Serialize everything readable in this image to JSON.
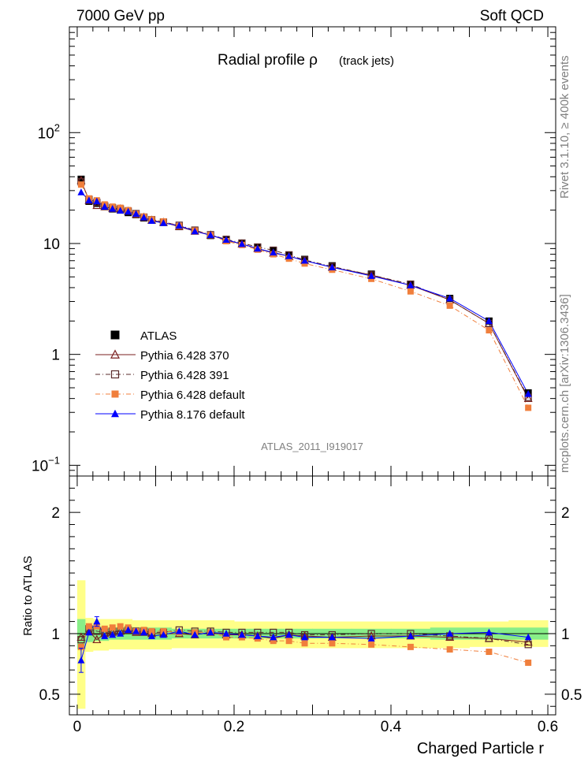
{
  "header": {
    "left": "7000 GeV pp",
    "right": "Soft QCD"
  },
  "side_labels": {
    "rivet": "Rivet 3.1.10, ≥ 400k events",
    "source": "mcplots.cern.ch [arXiv:1306.3436]"
  },
  "analysis_id": "ATLAS_2011_I919017",
  "chart_data": [
    {
      "panel": "main",
      "type": "scatter",
      "title_main": "Radial profile  ρ",
      "title_sub": "(track jets)",
      "xlabel": "Charged Particle r",
      "ylabel": "",
      "yscale": "log",
      "xlim": [
        -0.01,
        0.61
      ],
      "ylim": [
        0.08,
        900
      ],
      "yticks": [
        {
          "value": 0.1,
          "base": "10",
          "exp": "−1"
        },
        {
          "value": 1,
          "text": "1"
        },
        {
          "value": 10,
          "text": "10"
        },
        {
          "value": 100,
          "base": "10",
          "exp": "2"
        }
      ],
      "x": [
        0.005,
        0.015,
        0.025,
        0.035,
        0.045,
        0.055,
        0.065,
        0.075,
        0.085,
        0.095,
        0.11,
        0.13,
        0.15,
        0.17,
        0.19,
        0.21,
        0.23,
        0.25,
        0.27,
        0.29,
        0.325,
        0.375,
        0.425,
        0.475,
        0.525,
        0.575
      ],
      "series": [
        {
          "name": "ATLAS",
          "color": "#000000",
          "marker": "filled-square",
          "line": "none",
          "values": [
            38,
            24,
            23,
            21.5,
            20.5,
            20,
            19,
            18.2,
            17,
            16.2,
            15.5,
            14.2,
            13.0,
            11.8,
            10.8,
            10.0,
            9.2,
            8.6,
            7.8,
            7.2,
            6.3,
            5.3,
            4.3,
            3.2,
            2.0,
            0.45
          ]
        },
        {
          "name": "Pythia 6.428 370",
          "color": "#7a1f1f",
          "marker": "open-triangle",
          "line": "solid",
          "values": [
            37,
            24.5,
            22,
            21.5,
            20.7,
            20.5,
            19.5,
            18.3,
            17.2,
            16.2,
            15.5,
            14.2,
            12.9,
            11.9,
            10.7,
            9.9,
            9.0,
            8.2,
            7.7,
            7.0,
            6.1,
            5.2,
            4.2,
            3.1,
            1.9,
            0.4
          ]
        },
        {
          "name": "Pythia 6.428 391",
          "color": "#5a2b2b",
          "marker": "open-square",
          "line": "dashdot",
          "values": [
            36,
            25,
            23.5,
            21.8,
            21,
            20.5,
            19.6,
            18.6,
            17.3,
            16.4,
            15.6,
            14.6,
            13.2,
            12.0,
            10.9,
            10.1,
            9.3,
            8.7,
            7.9,
            7.1,
            6.2,
            5.2,
            4.3,
            3.1,
            1.9,
            0.41
          ]
        },
        {
          "name": "Pythia 6.428 default",
          "color": "#f07f3c",
          "marker": "filled-square",
          "line": "dashdot",
          "values": [
            34,
            25.5,
            24.5,
            22.5,
            21.5,
            21,
            20,
            18.5,
            17.5,
            16.5,
            15.8,
            14.4,
            13.1,
            11.9,
            10.5,
            9.7,
            8.8,
            8.0,
            7.3,
            6.6,
            5.8,
            4.8,
            3.7,
            2.75,
            1.65,
            0.33
          ]
        },
        {
          "name": "Pythia 8.176 default",
          "color": "#0000ff",
          "marker": "filled-triangle",
          "line": "solid",
          "values": [
            29,
            24.5,
            24,
            21.5,
            20.6,
            19.8,
            19.4,
            18.5,
            17.2,
            16.0,
            15.3,
            14.5,
            12.9,
            11.9,
            10.8,
            9.9,
            9.0,
            8.3,
            7.7,
            7.0,
            6.1,
            5.1,
            4.2,
            3.2,
            2.0,
            0.44
          ]
        }
      ],
      "legend_placement": "bottom-left"
    },
    {
      "panel": "ratio",
      "type": "scatter",
      "ylabel": "Ratio to ATLAS",
      "xlabel": "Charged Particle r",
      "xlim": [
        -0.01,
        0.61
      ],
      "ylim": [
        0.33,
        2.3
      ],
      "yticks": [
        0.5,
        1,
        2
      ],
      "xticks": [
        0,
        0.2,
        0.4,
        0.6
      ],
      "x": [
        0.005,
        0.015,
        0.025,
        0.035,
        0.045,
        0.055,
        0.065,
        0.075,
        0.085,
        0.095,
        0.11,
        0.13,
        0.15,
        0.17,
        0.19,
        0.21,
        0.23,
        0.25,
        0.27,
        0.29,
        0.325,
        0.375,
        0.425,
        0.475,
        0.525,
        0.575
      ],
      "bands": {
        "edges": [
          0,
          0.01,
          0.02,
          0.03,
          0.04,
          0.05,
          0.06,
          0.07,
          0.08,
          0.09,
          0.1,
          0.12,
          0.14,
          0.16,
          0.18,
          0.2,
          0.22,
          0.24,
          0.26,
          0.28,
          0.3,
          0.35,
          0.4,
          0.45,
          0.5,
          0.55,
          0.6
        ],
        "inner_low": [
          0.87,
          0.93,
          0.94,
          0.94,
          0.95,
          0.95,
          0.95,
          0.95,
          0.95,
          0.95,
          0.95,
          0.96,
          0.96,
          0.96,
          0.96,
          0.96,
          0.96,
          0.96,
          0.96,
          0.96,
          0.96,
          0.96,
          0.96,
          0.95,
          0.95,
          0.95
        ],
        "inner_high": [
          1.12,
          1.06,
          1.06,
          1.05,
          1.05,
          1.05,
          1.05,
          1.05,
          1.05,
          1.05,
          1.05,
          1.04,
          1.04,
          1.04,
          1.04,
          1.04,
          1.04,
          1.04,
          1.04,
          1.04,
          1.04,
          1.04,
          1.04,
          1.05,
          1.05,
          1.05
        ],
        "outer_low": [
          0.38,
          0.85,
          0.86,
          0.86,
          0.87,
          0.87,
          0.87,
          0.87,
          0.87,
          0.87,
          0.87,
          0.88,
          0.88,
          0.88,
          0.88,
          0.88,
          0.88,
          0.88,
          0.88,
          0.88,
          0.88,
          0.88,
          0.88,
          0.88,
          0.89,
          0.89
        ],
        "outer_high": [
          1.44,
          1.13,
          1.12,
          1.12,
          1.12,
          1.12,
          1.12,
          1.11,
          1.11,
          1.11,
          1.11,
          1.11,
          1.11,
          1.11,
          1.11,
          1.1,
          1.1,
          1.1,
          1.1,
          1.1,
          1.1,
          1.1,
          1.1,
          1.1,
          1.1,
          1.11
        ],
        "inner_color": "#88ee88",
        "outer_color": "#ffff88"
      },
      "series": [
        {
          "name": "Pythia 6.428 370",
          "values": [
            0.97,
            1.02,
            0.95,
            1.0,
            1.01,
            1.02,
            1.03,
            1.01,
            1.01,
            1.0,
            1.0,
            1.0,
            0.99,
            1.01,
            0.99,
            0.99,
            0.98,
            0.96,
            0.99,
            0.98,
            0.97,
            0.98,
            0.98,
            0.97,
            0.96,
            0.93
          ]
        },
        {
          "name": "Pythia 6.428 391",
          "values": [
            0.95,
            1.04,
            1.02,
            1.01,
            1.02,
            1.02,
            1.03,
            1.02,
            1.02,
            1.01,
            1.01,
            1.03,
            1.02,
            1.02,
            1.01,
            1.01,
            1.01,
            1.01,
            1.01,
            0.99,
            0.99,
            1.0,
            1.0,
            0.98,
            0.96,
            0.91
          ]
        },
        {
          "name": "Pythia 6.428 default",
          "values": [
            0.89,
            1.06,
            1.06,
            1.04,
            1.05,
            1.06,
            1.05,
            1.02,
            1.03,
            1.02,
            1.02,
            1.01,
            1.01,
            1.01,
            0.97,
            0.97,
            0.96,
            0.94,
            0.94,
            0.92,
            0.92,
            0.91,
            0.89,
            0.87,
            0.85,
            0.76
          ]
        },
        {
          "name": "Pythia 8.176 default",
          "values": [
            0.78,
            1.01,
            1.1,
            0.98,
            0.99,
            1.0,
            1.03,
            1.02,
            1.01,
            0.98,
            0.99,
            1.02,
            0.99,
            1.01,
            1.0,
            0.99,
            0.98,
            0.97,
            0.99,
            0.97,
            0.97,
            0.96,
            0.98,
            1.0,
            1.01,
            0.97
          ]
        }
      ]
    }
  ]
}
